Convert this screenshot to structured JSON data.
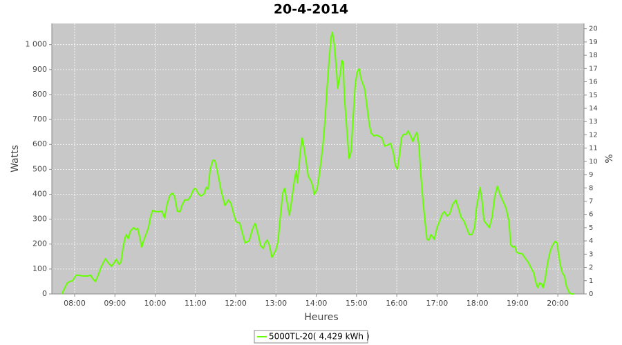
{
  "chart_data": {
    "type": "line",
    "title": "20-4-2014",
    "x_label": "Heures",
    "y_label": "Watts",
    "y2_label": "%",
    "x": [
      "07:41",
      "07:49",
      "07:53",
      "07:57",
      "08:02",
      "08:06",
      "08:12",
      "08:19",
      "08:24",
      "08:27",
      "08:31",
      "08:35",
      "08:39",
      "08:43",
      "08:46",
      "08:50",
      "08:55",
      "08:59",
      "09:02",
      "09:06",
      "09:09",
      "09:12",
      "09:15",
      "09:17",
      "09:20",
      "09:23",
      "09:28",
      "09:31",
      "09:34",
      "09:37",
      "09:40",
      "09:43",
      "09:47",
      "09:50",
      "09:53",
      "09:56",
      "10:01",
      "10:06",
      "10:10",
      "10:14",
      "10:18",
      "10:22",
      "10:26",
      "10:29",
      "10:33",
      "10:37",
      "10:40",
      "10:44",
      "10:49",
      "10:53",
      "10:57",
      "11:00",
      "11:04",
      "11:08",
      "11:13",
      "11:16",
      "11:19",
      "11:22",
      "11:26",
      "11:29",
      "11:33",
      "11:38",
      "11:44",
      "11:49",
      "11:53",
      "11:57",
      "12:01",
      "12:06",
      "12:10",
      "12:14",
      "12:20",
      "12:25",
      "12:29",
      "12:33",
      "12:37",
      "12:41",
      "12:44",
      "12:47",
      "12:50",
      "12:54",
      "12:57",
      "13:00",
      "13:03",
      "13:06",
      "13:10",
      "13:13",
      "13:16",
      "13:20",
      "13:23",
      "13:27",
      "13:30",
      "13:32",
      "13:34",
      "13:36",
      "13:39",
      "13:42",
      "13:45",
      "13:48",
      "13:52",
      "13:55",
      "13:57",
      "14:01",
      "14:04",
      "14:07",
      "14:10",
      "14:13",
      "14:16",
      "14:19",
      "14:22",
      "14:24",
      "14:27",
      "14:30",
      "14:32",
      "14:36",
      "14:38",
      "14:40",
      "14:42",
      "14:45",
      "14:49",
      "14:52",
      "14:55",
      "14:58",
      "15:01",
      "15:04",
      "15:07",
      "15:12",
      "15:15",
      "15:19",
      "15:22",
      "15:26",
      "15:30",
      "15:34",
      "15:38",
      "15:42",
      "15:47",
      "15:51",
      "15:55",
      "15:58",
      "16:01",
      "16:04",
      "16:07",
      "16:10",
      "16:14",
      "16:17",
      "16:21",
      "16:24",
      "16:27",
      "16:30",
      "16:33",
      "16:36",
      "16:39",
      "16:42",
      "16:45",
      "16:48",
      "16:51",
      "16:56",
      "17:00",
      "17:04",
      "17:08",
      "17:11",
      "17:15",
      "17:19",
      "17:23",
      "17:28",
      "17:32",
      "17:36",
      "17:40",
      "17:44",
      "17:48",
      "17:52",
      "17:56",
      "17:59",
      "18:04",
      "18:07",
      "18:10",
      "18:14",
      "18:18",
      "18:22",
      "18:26",
      "18:30",
      "18:34",
      "18:39",
      "18:43",
      "18:47",
      "18:50",
      "18:53",
      "18:56",
      "18:59",
      "19:03",
      "19:07",
      "19:12",
      "19:16",
      "19:20",
      "19:24",
      "19:27",
      "19:30",
      "19:33",
      "19:36",
      "19:38",
      "19:41",
      "19:45",
      "19:49",
      "19:53",
      "19:56",
      "19:59",
      "20:01",
      "20:04",
      "20:07",
      "20:10",
      "20:13",
      "20:17",
      "20:20",
      "20:24"
    ],
    "series": [
      {
        "name": "5000TL-20( 4,429 kWh )",
        "color": "#66ff00",
        "values": [
          0,
          44,
          50,
          53,
          75,
          75,
          72,
          72,
          75,
          61,
          50,
          75,
          105,
          127,
          141,
          125,
          111,
          125,
          139,
          119,
          127,
          183,
          224,
          238,
          222,
          252,
          266,
          258,
          263,
          227,
          188,
          216,
          244,
          266,
          307,
          335,
          330,
          330,
          332,
          305,
          363,
          396,
          404,
          391,
          332,
          330,
          355,
          377,
          377,
          393,
          418,
          424,
          404,
          393,
          402,
          427,
          421,
          501,
          537,
          535,
          488,
          418,
          355,
          377,
          363,
          321,
          288,
          285,
          244,
          205,
          213,
          260,
          283,
          244,
          194,
          183,
          205,
          216,
          197,
          147,
          161,
          177,
          211,
          294,
          404,
          424,
          377,
          316,
          368,
          446,
          493,
          446,
          501,
          565,
          626,
          584,
          529,
          474,
          454,
          432,
          399,
          418,
          468,
          529,
          598,
          695,
          820,
          931,
          1028,
          1050,
          1000,
          903,
          825,
          886,
          936,
          931,
          792,
          681,
          543,
          571,
          709,
          834,
          892,
          903,
          861,
          825,
          765,
          681,
          645,
          634,
          637,
          632,
          626,
          593,
          598,
          604,
          565,
          515,
          501,
          557,
          626,
          640,
          640,
          654,
          632,
          612,
          634,
          648,
          598,
          474,
          377,
          294,
          219,
          216,
          238,
          219,
          266,
          294,
          321,
          330,
          313,
          321,
          357,
          377,
          343,
          307,
          294,
          266,
          238,
          238,
          266,
          349,
          427,
          377,
          294,
          280,
          266,
          307,
          391,
          432,
          399,
          368,
          343,
          294,
          197,
          188,
          191,
          166,
          163,
          161,
          141,
          127,
          105,
          86,
          50,
          25,
          44,
          39,
          25,
          58,
          127,
          175,
          199,
          211,
          205,
          161,
          114,
          83,
          72,
          30,
          6,
          0,
          0
        ]
      }
    ],
    "xlim": [
      "07:26",
      "20:39"
    ],
    "xticks": [
      "08:00",
      "09:00",
      "10:00",
      "11:00",
      "12:00",
      "13:00",
      "14:00",
      "15:00",
      "16:00",
      "17:00",
      "18:00",
      "19:00",
      "20:00"
    ],
    "ylim": [
      0,
      1085
    ],
    "yticks": [
      0,
      100,
      200,
      300,
      400,
      500,
      600,
      700,
      800,
      900,
      {
        "value": 1000,
        "label": "1 000"
      }
    ],
    "y2lim": [
      0,
      20.4
    ],
    "y2ticks": [
      0,
      1,
      2,
      3,
      4,
      5,
      6,
      7,
      8,
      9,
      10,
      11,
      12,
      13,
      14,
      15,
      16,
      17,
      18,
      19,
      20
    ],
    "grid": true
  }
}
